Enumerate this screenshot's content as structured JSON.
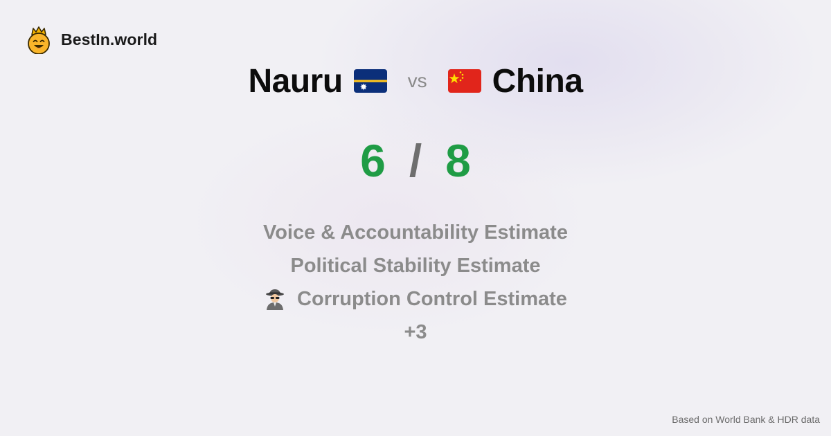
{
  "brand": {
    "name": "BestIn.world",
    "logo_icon": "crowned-smiley-icon"
  },
  "comparison": {
    "country_a": {
      "name": "Nauru",
      "flag_icon": "nauru-flag-icon",
      "score": "6"
    },
    "vs_label": "vs",
    "country_b": {
      "name": "China",
      "flag_icon": "china-flag-icon",
      "score": "8"
    },
    "separator": "/"
  },
  "metrics": [
    {
      "label": "Voice & Accountability Estimate"
    },
    {
      "label": "Political Stability Estimate"
    },
    {
      "label": "Corruption Control Estimate",
      "icon": "detective-icon"
    },
    {
      "label": "+3"
    }
  ],
  "footer": {
    "source_text": "Based on World Bank & HDR data"
  },
  "colors": {
    "score_green": "#1f9c45",
    "muted_text": "#8b8b8b",
    "background": "#f1f0f4"
  }
}
